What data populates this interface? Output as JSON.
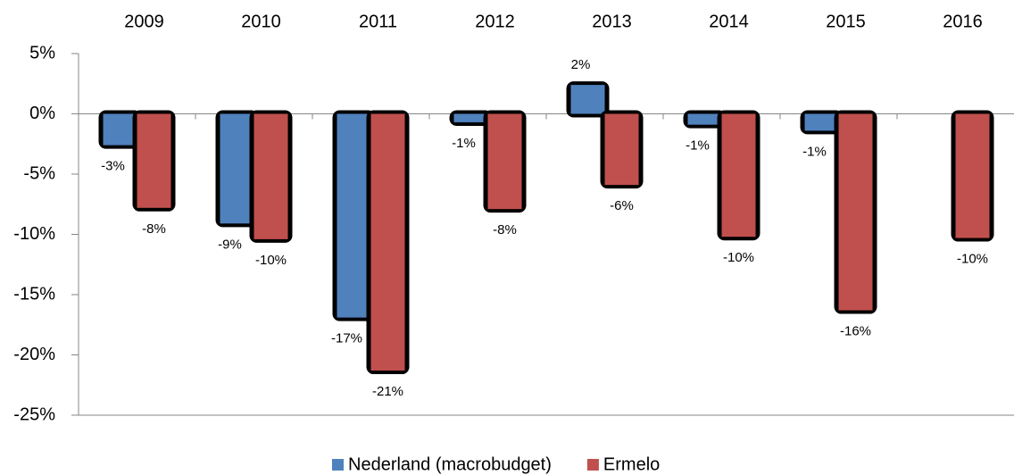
{
  "chart_data": {
    "type": "bar",
    "categories": [
      "2009",
      "2010",
      "2011",
      "2012",
      "2013",
      "2014",
      "2015",
      "2016"
    ],
    "series": [
      {
        "name": "Nederland (macrobudget)",
        "color": "#4f81bd",
        "values": [
          -2.6,
          -9.1,
          -16.9,
          -0.7,
          2.4,
          -0.9,
          -1.4,
          null
        ],
        "value_labels": [
          "-3%",
          "-9%",
          "-17%",
          "-1%",
          "2%",
          "-1%",
          "-1%",
          null
        ]
      },
      {
        "name": "Ermelo",
        "color": "#c0504d",
        "values": [
          -7.8,
          -10.4,
          -21.3,
          -7.9,
          -5.9,
          -10.2,
          -16.3,
          -10.3
        ],
        "value_labels": [
          "-8%",
          "-10%",
          "-21%",
          "-8%",
          "-6%",
          "-10%",
          "-16%",
          "-10%"
        ]
      }
    ],
    "ylim": [
      -25,
      5
    ],
    "yticks": [
      {
        "value": -25,
        "label": "-25%"
      },
      {
        "value": -20,
        "label": "-20%"
      },
      {
        "value": -15,
        "label": "-15%"
      },
      {
        "value": -10,
        "label": "-10%"
      },
      {
        "value": -5,
        "label": "-5%"
      },
      {
        "value": 0,
        "label": "0%"
      },
      {
        "value": 5,
        "label": "5%"
      }
    ],
    "legend": "bottom"
  }
}
